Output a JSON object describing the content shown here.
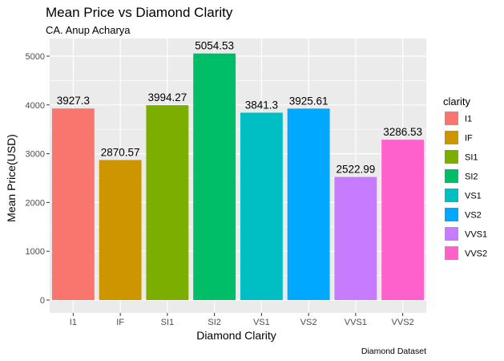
{
  "chart_data": {
    "type": "bar",
    "title": "Mean Price vs Diamond Clarity",
    "subtitle": "CA. Anup Acharya",
    "xlabel": "Diamond Clarity",
    "ylabel": "Mean Price(USD)",
    "caption": "Diamond Dataset",
    "categories": [
      "I1",
      "IF",
      "SI1",
      "SI2",
      "VS1",
      "VS2",
      "VVS1",
      "VVS2"
    ],
    "values": [
      3927.3,
      2870.57,
      3994.27,
      5054.53,
      3841.3,
      3925.61,
      2522.99,
      3286.53
    ],
    "value_labels": [
      "3927.3",
      "2870.57",
      "3994.27",
      "5054.53",
      "3841.3",
      "3925.61",
      "2522.99",
      "3286.53"
    ],
    "colors": [
      "#F8766D",
      "#CD9600",
      "#7CAE00",
      "#00BE67",
      "#00BFC4",
      "#00A9FF",
      "#C77CFF",
      "#FF61CC"
    ],
    "ylim": [
      0,
      5300
    ],
    "yticks": [
      0,
      1000,
      2000,
      3000,
      4000,
      5000
    ],
    "ytick_labels": [
      "0",
      "1000",
      "2000",
      "3000",
      "4000",
      "5000"
    ],
    "grid": true,
    "panel_background": "#EBEBEB",
    "legend": {
      "title": "clarity",
      "position": "right",
      "items": [
        "I1",
        "IF",
        "SI1",
        "SI2",
        "VS1",
        "VS2",
        "VVS1",
        "VVS2"
      ]
    }
  }
}
